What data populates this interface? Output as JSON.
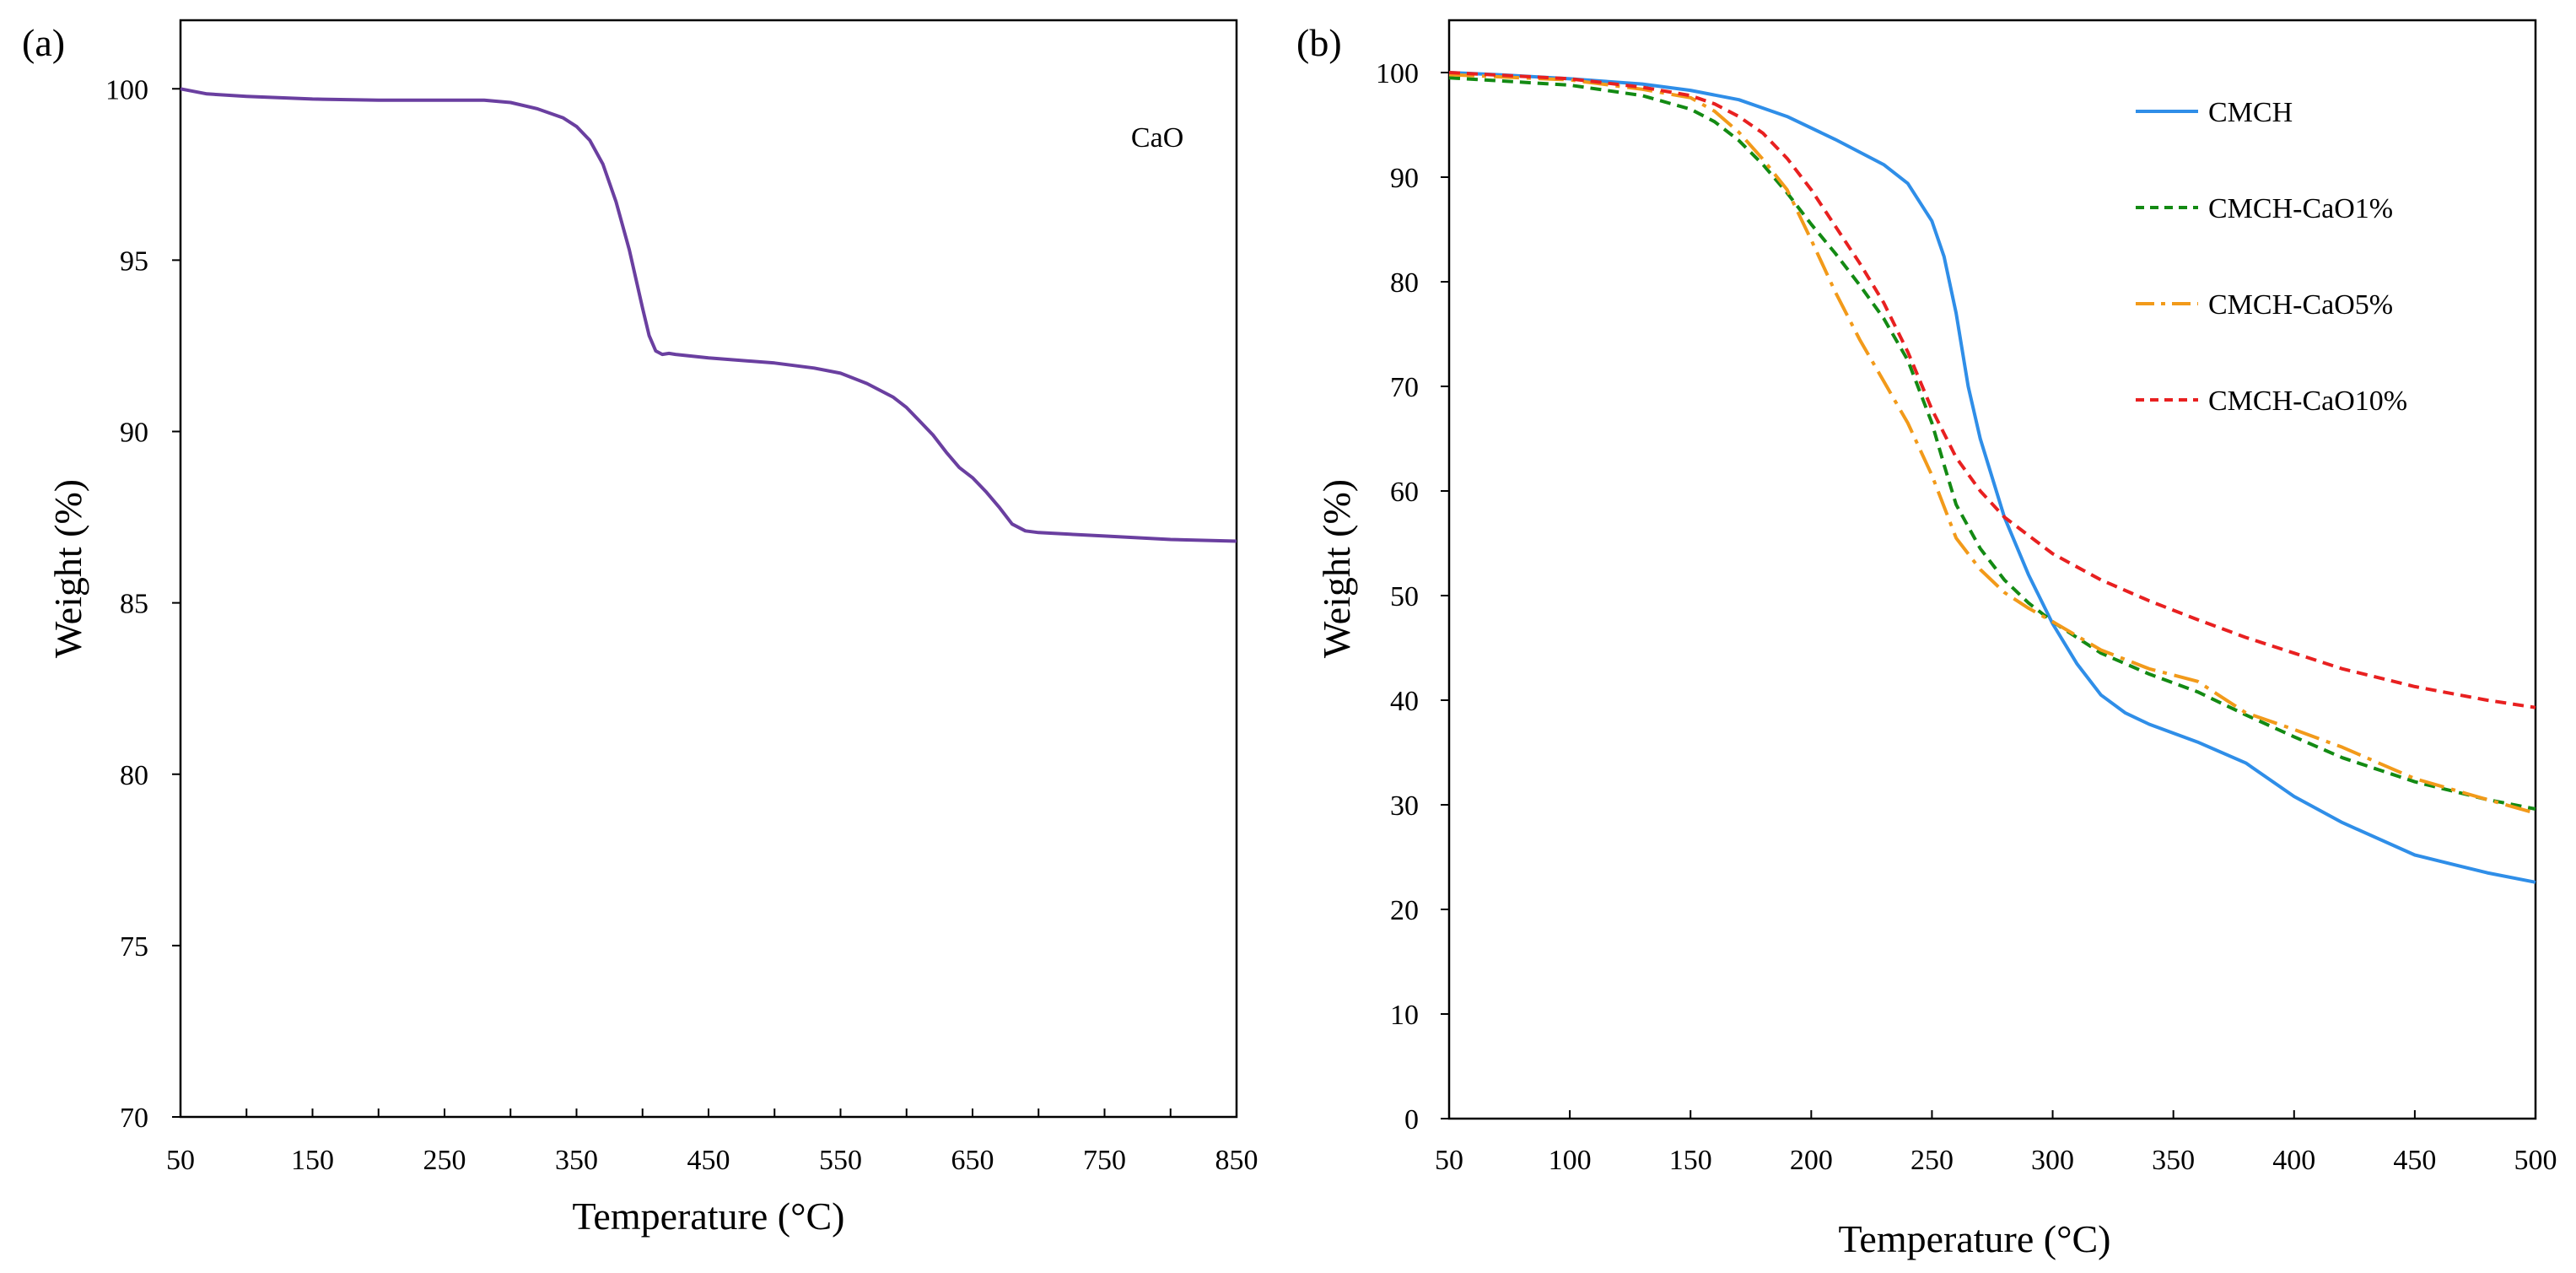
{
  "chart_data": [
    {
      "type": "line",
      "panel_label": "(a)",
      "title": "",
      "xlabel": "Temperature (°C)",
      "ylabel": "Weight (%)",
      "xlim": [
        50,
        850
      ],
      "ylim": [
        70,
        102
      ],
      "xticks": [
        50,
        150,
        250,
        350,
        450,
        550,
        650,
        750,
        850
      ],
      "yticks": [
        70,
        75,
        80,
        85,
        90,
        95,
        100
      ],
      "minor_xticks": [
        100,
        200,
        300,
        400,
        500,
        600,
        700,
        800
      ],
      "grid": false,
      "annotations": [
        {
          "text": "CaO",
          "x": 790,
          "y": 98.6
        }
      ],
      "series": [
        {
          "name": "CaO",
          "color": "#6a3fa0",
          "dash": "solid",
          "x": [
            50,
            70,
            100,
            150,
            200,
            250,
            280,
            300,
            320,
            340,
            350,
            360,
            370,
            380,
            390,
            400,
            405,
            410,
            415,
            420,
            425,
            450,
            500,
            530,
            550,
            570,
            590,
            600,
            610,
            620,
            630,
            640,
            650,
            660,
            670,
            680,
            690,
            700,
            750,
            800,
            850
          ],
          "values": [
            100.0,
            99.85,
            99.78,
            99.7,
            99.67,
            99.67,
            99.67,
            99.6,
            99.42,
            99.15,
            98.9,
            98.5,
            97.8,
            96.7,
            95.3,
            93.6,
            92.8,
            92.35,
            92.25,
            92.28,
            92.25,
            92.15,
            92.0,
            91.85,
            91.7,
            91.4,
            91.0,
            90.7,
            90.3,
            89.9,
            89.4,
            88.95,
            88.65,
            88.25,
            87.8,
            87.3,
            87.1,
            87.05,
            86.95,
            86.85,
            86.8
          ]
        }
      ]
    },
    {
      "type": "line",
      "panel_label": "(b)",
      "title": "",
      "xlabel": "Temperature (°C)",
      "ylabel": "Weight (%)",
      "xlim": [
        50,
        500
      ],
      "ylim": [
        0,
        105
      ],
      "xticks": [
        50,
        100,
        150,
        200,
        250,
        300,
        350,
        400,
        450,
        500
      ],
      "yticks": [
        0,
        10,
        20,
        30,
        40,
        50,
        60,
        70,
        80,
        90,
        100
      ],
      "minor_xticks": [],
      "grid": false,
      "legend_position": "top-right",
      "series": [
        {
          "name": "CMCH",
          "color": "#2f8ee8",
          "dash": "solid",
          "x": [
            50,
            70,
            100,
            130,
            150,
            170,
            190,
            210,
            230,
            240,
            250,
            255,
            260,
            265,
            270,
            280,
            290,
            300,
            310,
            320,
            330,
            340,
            360,
            380,
            400,
            420,
            450,
            480,
            500
          ],
          "values": [
            100,
            99.8,
            99.4,
            98.9,
            98.3,
            97.4,
            95.8,
            93.6,
            91.2,
            89.4,
            85.8,
            82.4,
            77,
            70,
            65,
            57.5,
            52,
            47.3,
            43.5,
            40.5,
            38.8,
            37.7,
            36,
            34,
            30.8,
            28.3,
            25.2,
            23.5,
            22.6
          ]
        },
        {
          "name": "CMCH-CaO1%",
          "color": "#138a13",
          "dash": "dashed",
          "x": [
            50,
            100,
            130,
            150,
            160,
            170,
            180,
            190,
            200,
            210,
            220,
            230,
            240,
            250,
            255,
            260,
            270,
            280,
            290,
            300,
            320,
            340,
            360,
            380,
            400,
            420,
            450,
            480,
            500
          ],
          "values": [
            99.5,
            98.8,
            97.8,
            96.5,
            95.3,
            93.5,
            91.2,
            88.5,
            85.5,
            82.7,
            79.7,
            76.5,
            72.5,
            66.5,
            62.5,
            58.7,
            54.5,
            51.5,
            49.3,
            47.5,
            44.5,
            42.5,
            40.8,
            38.6,
            36.5,
            34.5,
            32.2,
            30.5,
            29.6
          ]
        },
        {
          "name": "CMCH-CaO5%",
          "color": "#f29a1a",
          "dash": "dashdot",
          "x": [
            50,
            100,
            130,
            150,
            160,
            170,
            180,
            190,
            200,
            210,
            220,
            230,
            240,
            250,
            255,
            260,
            270,
            280,
            290,
            300,
            320,
            340,
            360,
            370,
            380,
            400,
            420,
            450,
            480,
            500
          ],
          "values": [
            99.8,
            99.3,
            98.4,
            97.6,
            96.3,
            94.3,
            91.7,
            88.8,
            84,
            79,
            74.5,
            70.5,
            66.5,
            61.5,
            58.5,
            55.5,
            52.5,
            50.3,
            48.8,
            47.5,
            44.8,
            43,
            41.8,
            40.3,
            38.8,
            37.2,
            35.5,
            32.5,
            30.5,
            29.2
          ]
        },
        {
          "name": "CMCH-CaO10%",
          "color": "#e82020",
          "dash": "dashed",
          "x": [
            50,
            100,
            130,
            150,
            160,
            170,
            180,
            190,
            200,
            210,
            220,
            230,
            240,
            250,
            260,
            270,
            280,
            300,
            320,
            340,
            360,
            380,
            400,
            420,
            450,
            480,
            500
          ],
          "values": [
            100,
            99.4,
            98.6,
            97.8,
            97,
            95.8,
            94.2,
            91.8,
            88.8,
            85.3,
            81.8,
            78,
            73.3,
            67.8,
            63.2,
            60,
            57.5,
            54,
            51.5,
            49.5,
            47.7,
            46,
            44.5,
            43,
            41.3,
            40,
            39.3
          ]
        }
      ]
    }
  ]
}
